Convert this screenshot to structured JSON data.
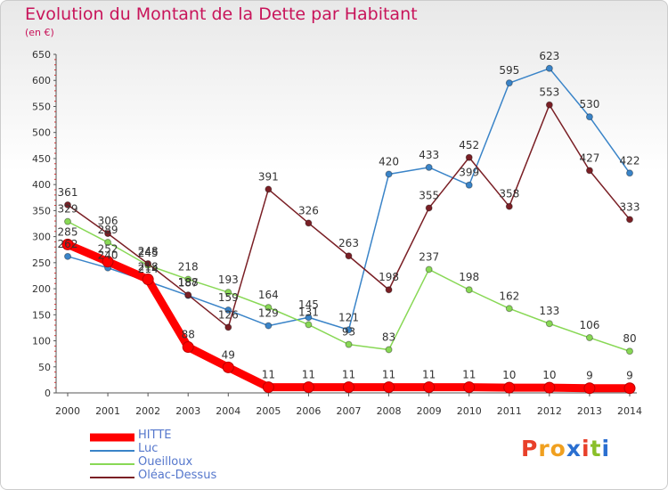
{
  "title": "Evolution du Montant de la Dette par Habitant",
  "unit": "(en €)",
  "logo": {
    "letters": [
      "P",
      "r",
      "o",
      "x",
      "i",
      "t",
      "i"
    ],
    "colors": [
      "#e8402a",
      "#f0a020",
      "#f0a020",
      "#2a6fd0",
      "#e8402a",
      "#8abf2a",
      "#2a6fd0"
    ]
  },
  "chart_data": {
    "type": "line",
    "x": [
      "2000",
      "2001",
      "2002",
      "2003",
      "2004",
      "2005",
      "2006",
      "2007",
      "2008",
      "2009",
      "2010",
      "2011",
      "2012",
      "2013",
      "2014"
    ],
    "ylim": [
      0,
      650
    ],
    "yticks": [
      0,
      50,
      100,
      150,
      200,
      250,
      300,
      350,
      400,
      450,
      500,
      550,
      600,
      650
    ],
    "grid": false,
    "legend_position": "bottom-left",
    "series": [
      {
        "name": "HITTE",
        "color": "#ff0000",
        "emphasis": true,
        "values": [
          285,
          252,
          218,
          88,
          49,
          11,
          11,
          11,
          11,
          11,
          11,
          10,
          10,
          9,
          9
        ],
        "labels": [
          "285",
          "252",
          "218",
          "88",
          "49",
          "11",
          "11",
          "11",
          "11",
          "11",
          "11",
          "10",
          "10",
          "9",
          "9"
        ]
      },
      {
        "name": "Luc",
        "color": "#3a84c8",
        "values": [
          262,
          240,
          214,
          187,
          159,
          129,
          145,
          121,
          420,
          433,
          399,
          595,
          623,
          530,
          422
        ],
        "labels": [
          "262",
          "240",
          "214",
          "187",
          "159",
          "129",
          "145",
          "121",
          "420",
          "433",
          "399",
          "595",
          "623",
          "530",
          "422"
        ]
      },
      {
        "name": "Oueilloux",
        "color": "#88d855",
        "values": [
          329,
          289,
          245,
          218,
          193,
          164,
          131,
          93,
          83,
          237,
          198,
          162,
          133,
          106,
          80
        ],
        "labels": [
          "329",
          "289",
          "245",
          "218",
          "193",
          "164",
          "131",
          "93",
          "83",
          "237",
          "198",
          "162",
          "133",
          "106",
          "80"
        ]
      },
      {
        "name": "Oléac-Dessus",
        "color": "#7a1f25",
        "values": [
          361,
          306,
          248,
          188,
          126,
          391,
          326,
          263,
          198,
          355,
          452,
          358,
          553,
          427,
          333
        ],
        "labels": [
          "361",
          "306",
          "248",
          "188",
          "126",
          "391",
          "326",
          "263",
          "198",
          "355",
          "452",
          "358",
          "553",
          "427",
          "333"
        ]
      }
    ]
  }
}
